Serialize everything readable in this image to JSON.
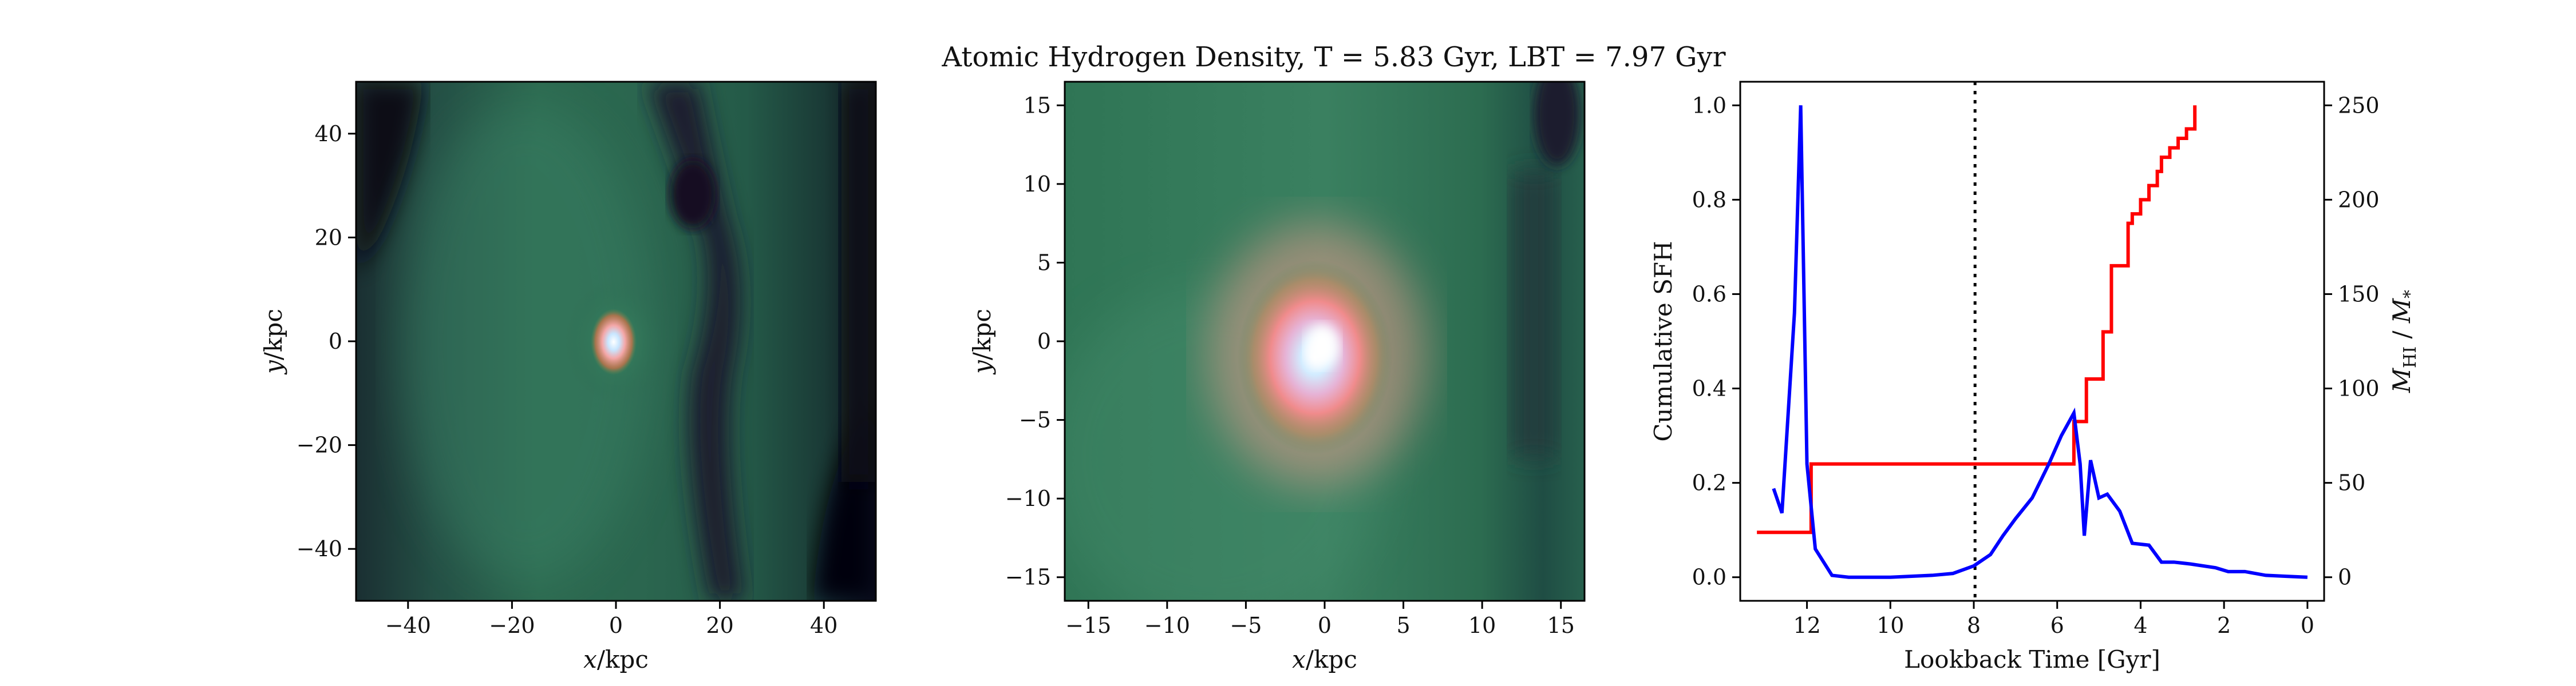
{
  "figure": {
    "title": "Atomic Hydrogen Density, T = 5.83 Gyr, LBT = 7.97 Gyr"
  },
  "chart_data": [
    {
      "type": "heatmap",
      "xlabel_var": "x",
      "xlabel_unit": "/kpc",
      "ylabel_var": "y",
      "ylabel_unit": "/kpc",
      "xlim": [
        -50,
        50
      ],
      "ylim": [
        -50,
        50
      ],
      "xticks": [
        "−40",
        "−20",
        "0",
        "20",
        "40"
      ],
      "xtick_values": [
        -40,
        -20,
        0,
        20,
        40
      ],
      "yticks": [
        "40",
        "20",
        "0",
        "−20",
        "−40"
      ],
      "ytick_values": [
        40,
        20,
        0,
        -20,
        -40
      ],
      "colormap": "cubehelix-green",
      "colors": {
        "dark": "#0a0612",
        "mid": "#2a6b4f",
        "bright": "#e98a8c",
        "core": "#e8f4ff"
      }
    },
    {
      "type": "heatmap",
      "xlabel_var": "x",
      "xlabel_unit": "/kpc",
      "ylabel_var": "y",
      "ylabel_unit": "/kpc",
      "xlim": [
        -16.5,
        16.5
      ],
      "ylim": [
        -16.5,
        16.5
      ],
      "xticks": [
        "−15",
        "−10",
        "−5",
        "0",
        "5",
        "10",
        "15"
      ],
      "xtick_values": [
        -15,
        -10,
        -5,
        0,
        5,
        10,
        15
      ],
      "yticks": [
        "15",
        "10",
        "5",
        "0",
        "−5",
        "−10",
        "−15"
      ],
      "ytick_values": [
        15,
        10,
        5,
        0,
        -5,
        -10,
        -15
      ],
      "colormap": "cubehelix-green"
    },
    {
      "type": "line",
      "xlabel": "Lookback Time [Gyr]",
      "ylabel_left": "Cumulative SFH",
      "ylabel_right_sym": "M",
      "ylabel_right_sub1": "HI",
      "ylabel_right_mid": " / ",
      "ylabel_right_sub2": "*",
      "xlim": [
        13.6,
        -0.4
      ],
      "ylim_left": [
        -0.05,
        1.05
      ],
      "ylim_right": [
        -12.5,
        262.5
      ],
      "xticks": [
        "12",
        "10",
        "8",
        "6",
        "4",
        "2",
        "0"
      ],
      "xtick_values": [
        12,
        10,
        8,
        6,
        4,
        2,
        0
      ],
      "yticks_left": [
        "0.0",
        "0.2",
        "0.4",
        "0.6",
        "0.8",
        "1.0"
      ],
      "ytick_left_values": [
        0.0,
        0.2,
        0.4,
        0.6,
        0.8,
        1.0
      ],
      "yticks_right": [
        "0",
        "50",
        "100",
        "150",
        "200",
        "250"
      ],
      "ytick_right_values": [
        0,
        50,
        100,
        150,
        200,
        250
      ],
      "vline_x": 7.97,
      "series": [
        {
          "color": "#ff0000",
          "axis": "left",
          "x": [
            13.2,
            12.1,
            11.9,
            10.0,
            8.0,
            5.83,
            5.6,
            5.3,
            5.1,
            4.9,
            4.7,
            4.5,
            4.3,
            4.2,
            4.0,
            3.8,
            3.6,
            3.5,
            3.3,
            3.1,
            2.9,
            2.7
          ],
          "y": [
            0.095,
            0.095,
            0.24,
            0.24,
            0.24,
            0.24,
            0.33,
            0.42,
            0.42,
            0.52,
            0.66,
            0.66,
            0.75,
            0.77,
            0.8,
            0.83,
            0.86,
            0.89,
            0.91,
            0.93,
            0.95,
            1.0
          ]
        },
        {
          "color": "#0000ff",
          "axis": "right",
          "x": [
            12.8,
            12.6,
            12.3,
            12.15,
            12.0,
            11.8,
            11.6,
            11.4,
            11.0,
            10.0,
            9.0,
            8.5,
            8.0,
            7.6,
            7.3,
            7.0,
            6.6,
            6.2,
            5.9,
            5.6,
            5.45,
            5.35,
            5.2,
            5.0,
            4.8,
            4.5,
            4.2,
            3.8,
            3.5,
            3.2,
            2.8,
            2.2,
            1.9,
            1.5,
            1.0,
            0.5,
            0.0
          ],
          "y": [
            47,
            34,
            140,
            250,
            60,
            15,
            8,
            1,
            0,
            0,
            1,
            2,
            6,
            12,
            22,
            31,
            42,
            60,
            75,
            87,
            60,
            22,
            62,
            42,
            44,
            35,
            18,
            17,
            8,
            8,
            7,
            5,
            3,
            3,
            1,
            0.5,
            0
          ]
        }
      ]
    }
  ]
}
